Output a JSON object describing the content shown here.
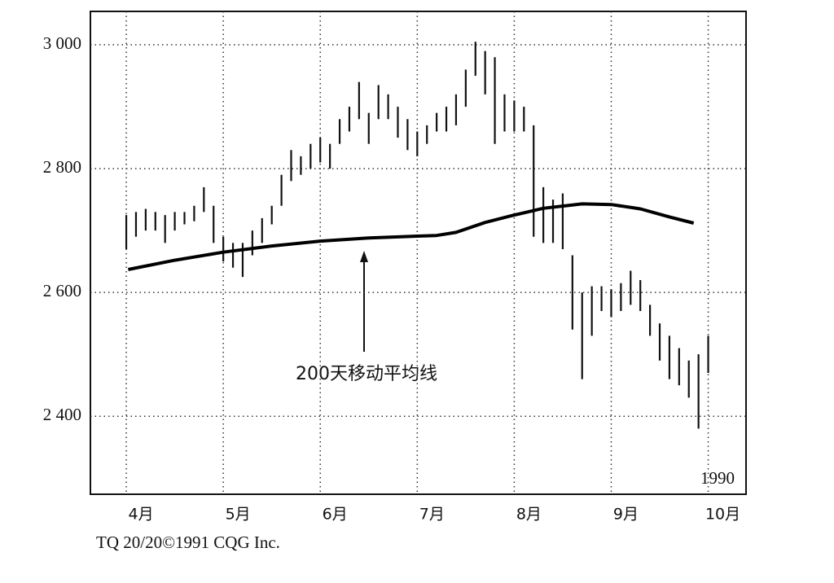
{
  "chart_data": {
    "type": "range-bar",
    "x": [
      0.0,
      0.1,
      0.2,
      0.3,
      0.4,
      0.5,
      0.6,
      0.7,
      0.8,
      0.9,
      1.0,
      1.1,
      1.2,
      1.3,
      1.4,
      1.5,
      1.6,
      1.7,
      1.8,
      1.9,
      2.0,
      2.1,
      2.2,
      2.3,
      2.4,
      2.5,
      2.6,
      2.7,
      2.8,
      2.9,
      3.0,
      3.1,
      3.2,
      3.3,
      3.4,
      3.5,
      3.6,
      3.7,
      3.8,
      3.9,
      4.0,
      4.1,
      4.2,
      4.3,
      4.4,
      4.5,
      4.6,
      4.7,
      4.8,
      4.9,
      5.0,
      5.1,
      5.2,
      5.3,
      5.4,
      5.5,
      5.6,
      5.7,
      5.8,
      5.9,
      6.0
    ],
    "high": [
      2725,
      2730,
      2735,
      2730,
      2725,
      2730,
      2730,
      2740,
      2770,
      2740,
      2690,
      2680,
      2680,
      2700,
      2720,
      2740,
      2790,
      2830,
      2820,
      2840,
      2850,
      2840,
      2880,
      2900,
      2940,
      2890,
      2935,
      2920,
      2900,
      2880,
      2860,
      2870,
      2890,
      2900,
      2920,
      2960,
      3005,
      2990,
      2980,
      2920,
      2910,
      2900,
      2870,
      2770,
      2750,
      2760,
      2660,
      2600,
      2610,
      2610,
      2605,
      2615,
      2635,
      2620,
      2580,
      2550,
      2530,
      2510,
      2490,
      2500,
      2530
    ],
    "low": [
      2670,
      2690,
      2700,
      2700,
      2680,
      2700,
      2710,
      2715,
      2730,
      2680,
      2650,
      2640,
      2625,
      2660,
      2680,
      2710,
      2740,
      2780,
      2790,
      2800,
      2810,
      2800,
      2840,
      2860,
      2880,
      2840,
      2880,
      2880,
      2850,
      2830,
      2820,
      2840,
      2860,
      2860,
      2870,
      2900,
      2950,
      2920,
      2840,
      2860,
      2860,
      2860,
      2690,
      2680,
      2680,
      2670,
      2540,
      2460,
      2530,
      2570,
      2560,
      2570,
      2580,
      2570,
      2530,
      2490,
      2460,
      2450,
      2430,
      2380,
      2470
    ],
    "bar_color": "#111111",
    "moving_average": {
      "x": [
        0.02,
        0.5,
        1.0,
        1.5,
        2.0,
        2.5,
        3.0,
        3.2,
        3.4,
        3.7,
        4.0,
        4.3,
        4.7,
        5.0,
        5.3,
        5.6,
        5.85
      ],
      "values": [
        2637,
        2652,
        2665,
        2675,
        2683,
        2688,
        2691,
        2692,
        2697,
        2713,
        2725,
        2736,
        2743,
        2742,
        2735,
        2722,
        2712
      ],
      "color": "#000000"
    },
    "annotation": "200天移动平均线",
    "year_label": "1990",
    "footer": "TQ 20/20©1991 CQG Inc.",
    "xlim": [
      -0.37,
      6.39
    ],
    "ylim": [
      2274,
      3054
    ],
    "xticks": [
      {
        "value": 0,
        "label": "4月"
      },
      {
        "value": 1,
        "label": "5月"
      },
      {
        "value": 2,
        "label": "6月"
      },
      {
        "value": 3,
        "label": "7月"
      },
      {
        "value": 4,
        "label": "8月"
      },
      {
        "value": 5,
        "label": "9月"
      },
      {
        "value": 6,
        "label": "10月"
      }
    ],
    "yticks": [
      {
        "value": 2400,
        "label": "2 400"
      },
      {
        "value": 2600,
        "label": "2 600"
      },
      {
        "value": 2800,
        "label": "2 800"
      },
      {
        "value": 3000,
        "label": "3 000"
      }
    ],
    "grid": true
  }
}
